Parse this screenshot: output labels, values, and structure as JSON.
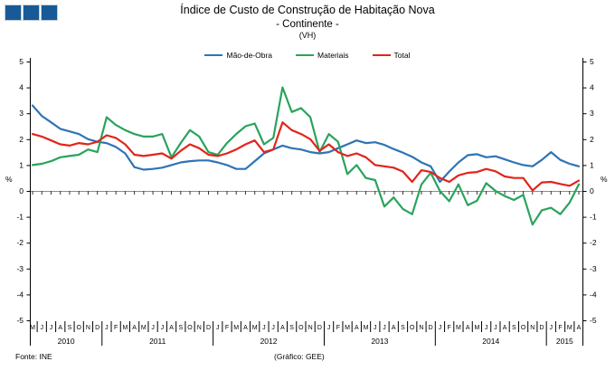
{
  "page": {
    "title": "Índice de Custo de Construção de Habitação Nova",
    "subtitle": "- Continente -",
    "unit": "(VH)"
  },
  "logo": {
    "name": "three-squares-logo",
    "color": "#185a96",
    "count": 3
  },
  "footer": {
    "source": "Fonte:  INE",
    "credit": "(Gráfico:  GEE)"
  },
  "chart_data": {
    "type": "line",
    "title": "Índice de Custo de Construção de Habitação Nova - Continente (VH)",
    "xlabel": "",
    "ylabel": "%",
    "ylim": [
      -5,
      5
    ],
    "y_ticks": [
      5,
      4,
      3,
      2,
      1,
      0,
      -1,
      -2,
      -3,
      -4,
      -5
    ],
    "grid": "zero-line-only",
    "zero_line_color": "#8c8c8c",
    "axis_color": "#000000",
    "legend_position": "top-center",
    "x_labels": [
      "M",
      "J",
      "J",
      "A",
      "S",
      "O",
      "N",
      "D",
      "J",
      "F",
      "M",
      "A",
      "M",
      "J",
      "J",
      "A",
      "S",
      "O",
      "N",
      "D",
      "J",
      "F",
      "M",
      "A",
      "M",
      "J",
      "J",
      "A",
      "S",
      "O",
      "N",
      "D",
      "J",
      "F",
      "M",
      "A",
      "M",
      "J",
      "J",
      "A",
      "S",
      "O",
      "N",
      "D",
      "J",
      "F",
      "M",
      "A",
      "M",
      "J",
      "J",
      "A",
      "S",
      "O",
      "N",
      "D",
      "J",
      "F",
      "M",
      "A"
    ],
    "year_groups": [
      {
        "label": "2010",
        "start": 0,
        "count": 8
      },
      {
        "label": "2011",
        "start": 8,
        "count": 12
      },
      {
        "label": "2012",
        "start": 20,
        "count": 12
      },
      {
        "label": "2013",
        "start": 32,
        "count": 12
      },
      {
        "label": "2014",
        "start": 44,
        "count": 12
      },
      {
        "label": "2015",
        "start": 56,
        "count": 4
      }
    ],
    "series": [
      {
        "name": "Mão-de-Obra",
        "color": "#2e74b5",
        "values": [
          3.3,
          2.9,
          2.65,
          2.4,
          2.3,
          2.2,
          2.0,
          1.9,
          1.85,
          1.7,
          1.45,
          0.92,
          0.82,
          0.85,
          0.9,
          1.0,
          1.1,
          1.15,
          1.18,
          1.18,
          1.1,
          1.0,
          0.85,
          0.85,
          1.15,
          1.45,
          1.6,
          1.75,
          1.65,
          1.6,
          1.5,
          1.45,
          1.5,
          1.65,
          1.8,
          1.95,
          1.85,
          1.88,
          1.78,
          1.62,
          1.48,
          1.32,
          1.1,
          0.95,
          0.35,
          0.75,
          1.1,
          1.38,
          1.42,
          1.3,
          1.34,
          1.22,
          1.1,
          1.0,
          0.95,
          1.2,
          1.5,
          1.2,
          1.05,
          0.95
        ]
      },
      {
        "name": "Materiais",
        "color": "#2aa35c",
        "values": [
          1.0,
          1.05,
          1.15,
          1.3,
          1.35,
          1.4,
          1.6,
          1.5,
          2.85,
          2.55,
          2.35,
          2.2,
          2.1,
          2.1,
          2.2,
          1.3,
          1.85,
          2.35,
          2.1,
          1.5,
          1.4,
          1.85,
          2.2,
          2.5,
          2.6,
          1.8,
          2.05,
          4.0,
          3.05,
          3.2,
          2.85,
          1.5,
          2.2,
          1.9,
          0.65,
          1.0,
          0.5,
          0.42,
          -0.6,
          -0.25,
          -0.7,
          -0.9,
          0.25,
          0.7,
          0.0,
          -0.4,
          0.25,
          -0.55,
          -0.38,
          0.3,
          0.0,
          -0.2,
          -0.35,
          -0.15,
          -1.3,
          -0.75,
          -0.65,
          -0.9,
          -0.45,
          0.25
        ]
      },
      {
        "name": "Total",
        "color": "#e1251b",
        "values": [
          2.2,
          2.1,
          1.95,
          1.8,
          1.75,
          1.85,
          1.8,
          1.9,
          2.15,
          2.05,
          1.8,
          1.4,
          1.35,
          1.4,
          1.45,
          1.25,
          1.55,
          1.8,
          1.65,
          1.4,
          1.35,
          1.45,
          1.6,
          1.8,
          1.95,
          1.5,
          1.6,
          2.65,
          2.35,
          2.2,
          2.0,
          1.55,
          1.8,
          1.5,
          1.35,
          1.45,
          1.3,
          1.0,
          0.95,
          0.9,
          0.75,
          0.35,
          0.8,
          0.73,
          0.5,
          0.35,
          0.6,
          0.7,
          0.73,
          0.85,
          0.76,
          0.56,
          0.5,
          0.5,
          0.02,
          0.33,
          0.35,
          0.27,
          0.2,
          0.4
        ]
      }
    ]
  }
}
